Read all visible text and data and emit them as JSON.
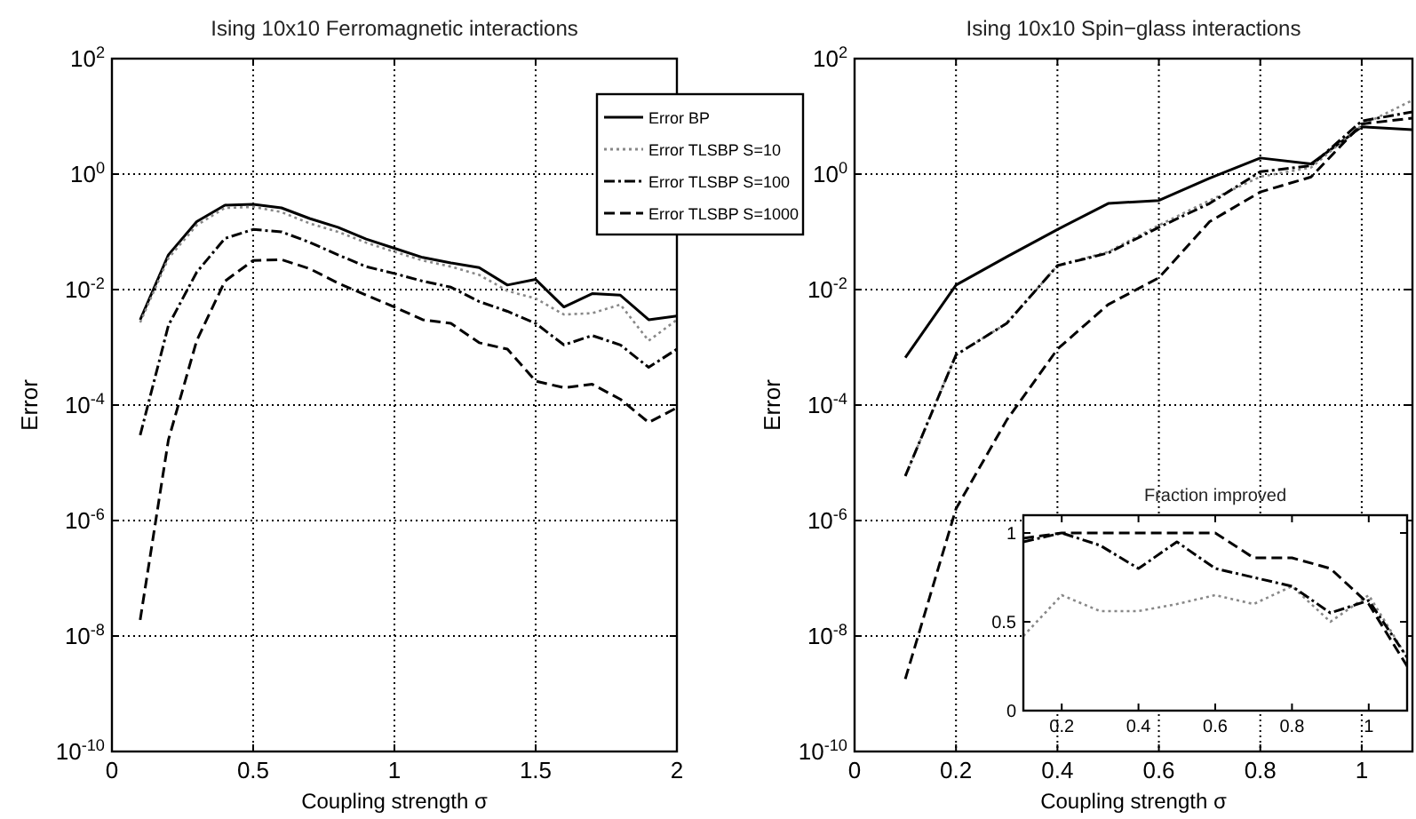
{
  "chart_data": [
    {
      "type": "line",
      "title": "Ising 10x10 Ferromagnetic interactions",
      "xlabel": "Coupling strength σ",
      "ylabel": "Error",
      "log": "y",
      "grid": true,
      "legend": "top right",
      "marker": "none",
      "x": [
        0.1,
        0.2,
        0.3,
        0.4,
        0.5,
        0.6,
        0.7,
        0.8,
        0.9,
        1.0,
        1.1,
        1.2,
        1.3,
        1.4,
        1.5,
        1.6,
        1.7,
        1.8,
        1.9,
        2.0
      ],
      "xlim": [
        0,
        2
      ],
      "xticks": [
        0,
        0.5,
        1,
        1.5,
        2
      ],
      "ylim": [
        1e-10,
        100
      ],
      "yticks": [
        {
          "value": 1e-10,
          "label": "10$^{-10}$"
        },
        {
          "value": 1e-08,
          "label": "10$^{-8}$"
        },
        {
          "value": 1e-06,
          "label": "10$^{-6}$"
        },
        {
          "value": 0.0001,
          "label": "10$^{-4}$"
        },
        {
          "value": 0.01,
          "label": "10$^{-2}$"
        },
        {
          "value": 1,
          "label": "10$^{0}$"
        },
        {
          "value": 100,
          "label": "10$^{2}$"
        }
      ],
      "series": [
        {
          "name": "Error BP",
          "color": "#000000",
          "line_style": "solid",
          "values": [
            0.003,
            0.04,
            0.15,
            0.29,
            0.3,
            0.26,
            0.17,
            0.12,
            0.075,
            0.052,
            0.036,
            0.029,
            0.024,
            0.012,
            0.015,
            0.005,
            0.0085,
            0.008,
            0.003,
            0.0035
          ]
        },
        {
          "name": "Error TLSBP S=10",
          "color": "#888888",
          "line_style": "dotted",
          "values": [
            0.0027,
            0.035,
            0.13,
            0.26,
            0.27,
            0.22,
            0.14,
            0.1,
            0.065,
            0.045,
            0.032,
            0.025,
            0.018,
            0.0095,
            0.007,
            0.0037,
            0.0039,
            0.0055,
            0.0013,
            0.003
          ]
        },
        {
          "name": "Error TLSBP S=100",
          "color": "#000000",
          "line_style": "dashdot",
          "values": [
            3e-05,
            0.0024,
            0.02,
            0.077,
            0.11,
            0.1,
            0.066,
            0.04,
            0.025,
            0.019,
            0.014,
            0.011,
            0.0062,
            0.0042,
            0.0026,
            0.0011,
            0.0016,
            0.0011,
            0.00045,
            0.00093
          ]
        },
        {
          "name": "Error TLSBP S=1000",
          "color": "#000000",
          "line_style": "dashed",
          "values": [
            1.9e-08,
            2.5e-05,
            0.0013,
            0.014,
            0.032,
            0.033,
            0.023,
            0.013,
            0.008,
            0.005,
            0.003,
            0.0026,
            0.0012,
            0.00093,
            0.00026,
            0.0002,
            0.00023,
            0.000126,
            5e-05,
            9e-05
          ]
        }
      ]
    },
    {
      "type": "line",
      "title": "Ising 10x10 Spin−glass interactions",
      "xlabel": "Coupling strength σ",
      "ylabel": "Error",
      "log": "y",
      "grid": true,
      "marker": "none",
      "x": [
        0.1,
        0.2,
        0.3,
        0.4,
        0.5,
        0.6,
        0.7,
        0.8,
        0.9,
        1.0,
        1.1
      ],
      "xlim": [
        0,
        1.1
      ],
      "xticks": [
        0,
        0.2,
        0.4,
        0.6,
        0.8,
        1
      ],
      "ylim": [
        1e-10,
        100
      ],
      "yticks": [
        {
          "value": 1e-10,
          "label": "10$^{-10}$"
        },
        {
          "value": 1e-08,
          "label": "10$^{-8}$"
        },
        {
          "value": 1e-06,
          "label": "10$^{-6}$"
        },
        {
          "value": 0.0001,
          "label": "10$^{-4}$"
        },
        {
          "value": 0.01,
          "label": "10$^{-2}$"
        },
        {
          "value": 1,
          "label": "10$^{0}$"
        },
        {
          "value": 100,
          "label": "10$^{2}$"
        }
      ],
      "series": [
        {
          "color": "#000000",
          "line_style": "solid",
          "values": [
            0.00066,
            0.012,
            0.037,
            0.11,
            0.31,
            0.35,
            0.85,
            1.9,
            1.5,
            6.6,
            5.9
          ]
        },
        {
          "color": "#888888",
          "line_style": "dotted",
          "values": [
            5.9e-06,
            0.00074,
            0.0026,
            0.026,
            0.045,
            0.13,
            0.35,
            0.9,
            1.3,
            7,
            19
          ]
        },
        {
          "color": "#000000",
          "line_style": "dashdot",
          "values": [
            5.9e-06,
            0.00074,
            0.0026,
            0.026,
            0.043,
            0.12,
            0.31,
            1.1,
            1.4,
            8.3,
            12
          ]
        },
        {
          "color": "#000000",
          "line_style": "dashed",
          "values": [
            1.8e-09,
            1.6e-06,
            5.5e-05,
            0.00093,
            0.0055,
            0.016,
            0.15,
            0.49,
            0.89,
            7.4,
            9.3
          ]
        }
      ]
    },
    {
      "type": "line",
      "title": "Fraction improved",
      "grid": false,
      "marker": "none",
      "x": [
        0.1,
        0.2,
        0.3,
        0.4,
        0.5,
        0.6,
        0.7,
        0.8,
        0.9,
        1.0,
        1.1
      ],
      "xlim": [
        0.1,
        1.1
      ],
      "xticks": [
        0.2,
        0.4,
        0.6,
        0.8,
        1
      ],
      "ylim": [
        0,
        1.1
      ],
      "yticks": [
        0,
        0.5,
        1
      ],
      "series": [
        {
          "color": "#888888",
          "line_style": "dotted",
          "values": [
            0.42,
            0.65,
            0.56,
            0.56,
            0.6,
            0.65,
            0.6,
            0.7,
            0.5,
            0.65,
            0.3
          ]
        },
        {
          "color": "#000000",
          "line_style": "dashdot",
          "values": [
            0.95,
            1.0,
            0.93,
            0.8,
            0.95,
            0.8,
            0.75,
            0.7,
            0.55,
            0.62,
            0.3
          ]
        },
        {
          "color": "#000000",
          "line_style": "dashed",
          "values": [
            0.97,
            1.0,
            1.0,
            1.0,
            1.0,
            1.0,
            0.86,
            0.86,
            0.8,
            0.6,
            0.25
          ]
        }
      ]
    }
  ]
}
